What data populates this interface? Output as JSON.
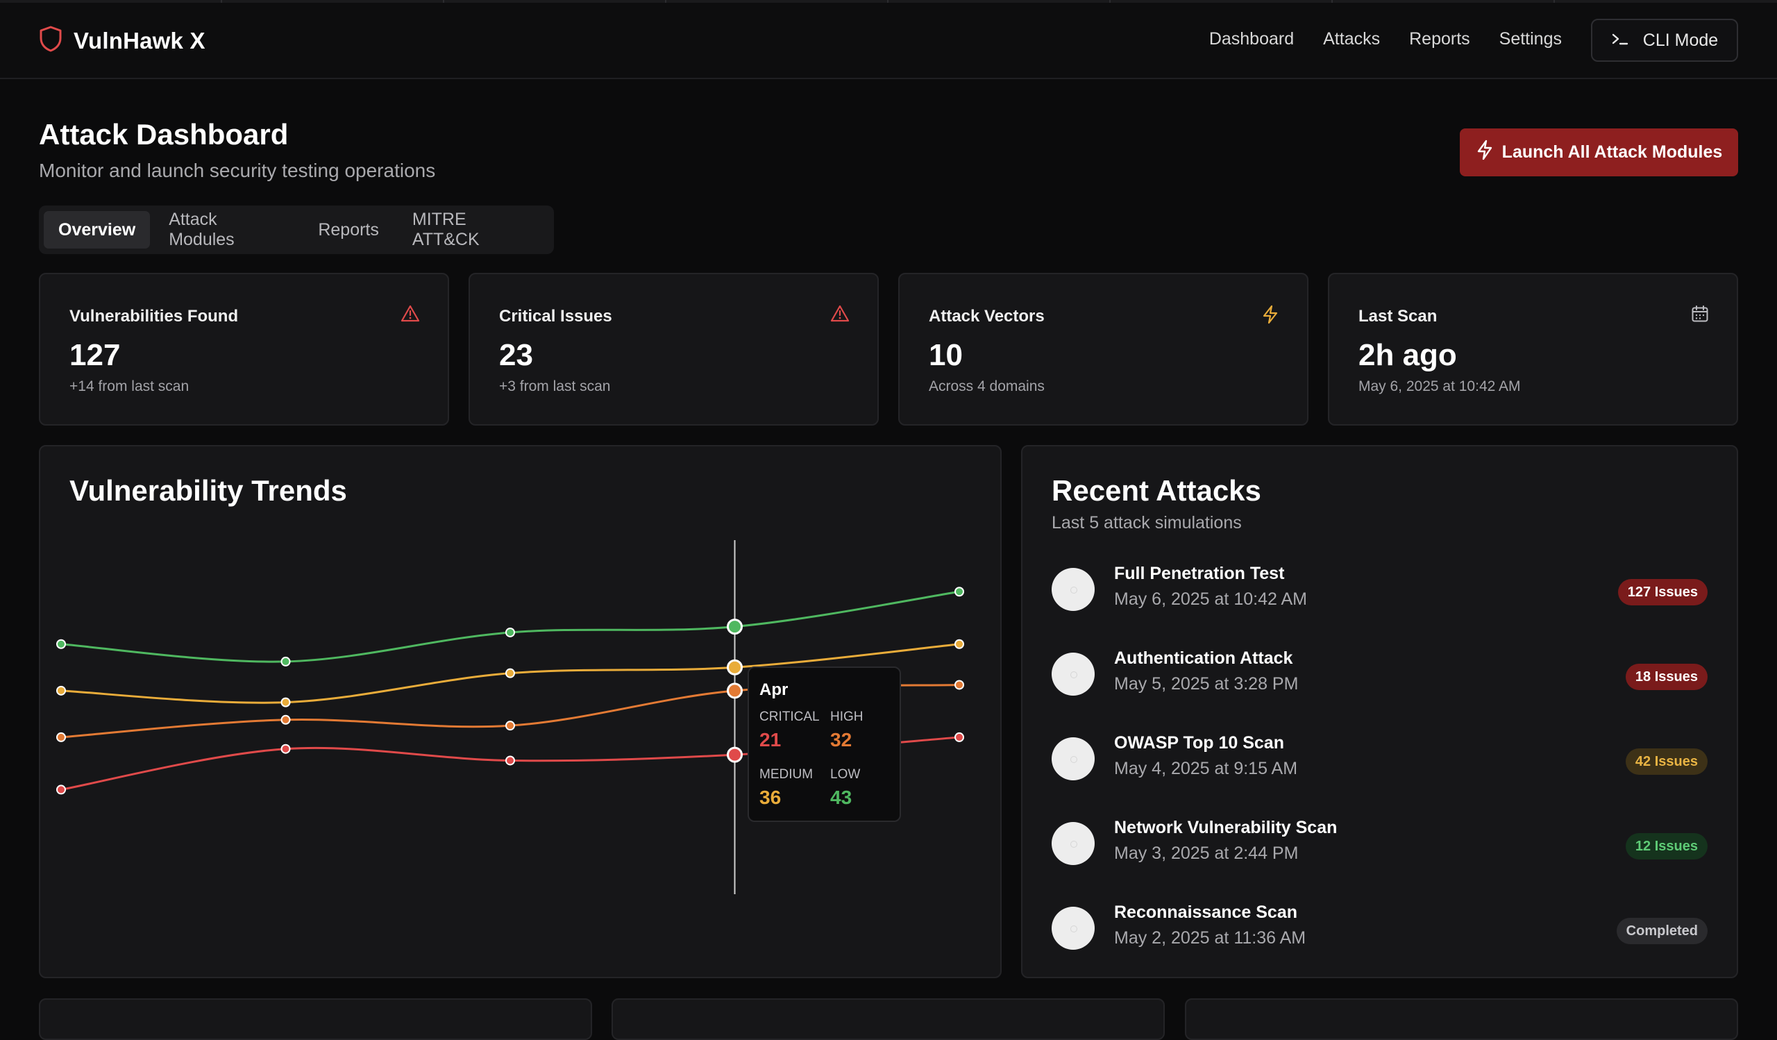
{
  "app": {
    "name": "VulnHawk X"
  },
  "nav": {
    "items": [
      "Dashboard",
      "Attacks",
      "Reports",
      "Settings"
    ],
    "cli_label": "CLI Mode"
  },
  "page": {
    "title": "Attack Dashboard",
    "subtitle": "Monitor and launch security testing operations",
    "launch_label": "Launch All Attack Modules"
  },
  "tabs": [
    "Overview",
    "Attack Modules",
    "Reports",
    "MITRE ATT&CK"
  ],
  "stats": [
    {
      "label": "Vulnerabilities Found",
      "value": "127",
      "note": "+14 from last scan",
      "icon": "alert-triangle-icon"
    },
    {
      "label": "Critical Issues",
      "value": "23",
      "note": "+3 from last scan",
      "icon": "alert-triangle-icon"
    },
    {
      "label": "Attack Vectors",
      "value": "10",
      "note": "Across 4 domains",
      "icon": "zap-icon"
    },
    {
      "label": "Last Scan",
      "value": "2h ago",
      "note": "May 6, 2025 at 10:42 AM",
      "icon": "calendar-icon"
    }
  ],
  "trends": {
    "title": "Vulnerability Trends",
    "tooltip": {
      "month": "Apr",
      "labels": {
        "critical": "CRITICAL",
        "high": "HIGH",
        "medium": "MEDIUM",
        "low": "LOW"
      },
      "values": {
        "critical": "21",
        "high": "32",
        "medium": "36",
        "low": "43"
      }
    }
  },
  "chart_data": {
    "type": "line",
    "x": [
      "",
      "",
      "",
      "Apr",
      ""
    ],
    "series": [
      {
        "name": "LOW",
        "color": "#4fb860",
        "values": [
          40,
          37,
          42,
          43,
          49
        ]
      },
      {
        "name": "MEDIUM",
        "color": "#e9ac3a",
        "values": [
          32,
          30,
          35,
          36,
          40
        ]
      },
      {
        "name": "HIGH",
        "color": "#e37a34",
        "values": [
          24,
          27,
          26,
          32,
          33
        ]
      },
      {
        "name": "CRITICAL",
        "color": "#e04a4a",
        "values": [
          15,
          22,
          20,
          21,
          24
        ]
      }
    ],
    "ylim": [
      -2,
      60
    ],
    "grid": false,
    "highlight_index": 3
  },
  "recent": {
    "title": "Recent Attacks",
    "subtitle": "Last 5 attack simulations",
    "items": [
      {
        "name": "Full Penetration Test",
        "date": "May 6, 2025 at 10:42 AM",
        "badge": "127 Issues",
        "badge_bg": "#7a1b1b",
        "badge_fg": "#ffffff"
      },
      {
        "name": "Authentication Attack",
        "date": "May 5, 2025 at 3:28 PM",
        "badge": "18 Issues",
        "badge_bg": "#7a1b1b",
        "badge_fg": "#ffffff"
      },
      {
        "name": "OWASP Top 10 Scan",
        "date": "May 4, 2025 at 9:15 AM",
        "badge": "42 Issues",
        "badge_bg": "#3d3117",
        "badge_fg": "#e9b443"
      },
      {
        "name": "Network Vulnerability Scan",
        "date": "May 3, 2025 at 2:44 PM",
        "badge": "12 Issues",
        "badge_bg": "#15331d",
        "badge_fg": "#5ecb76"
      },
      {
        "name": "Reconnaissance Scan",
        "date": "May 2, 2025 at 11:36 AM",
        "badge": "Completed",
        "badge_bg": "#2a2a2d",
        "badge_fg": "#c9c9cd"
      }
    ]
  },
  "colors": {
    "accent": "#8e1f1f",
    "critical": "#e04a4a",
    "high": "#e37a34",
    "medium": "#e9ac3a",
    "low": "#4fb860"
  }
}
